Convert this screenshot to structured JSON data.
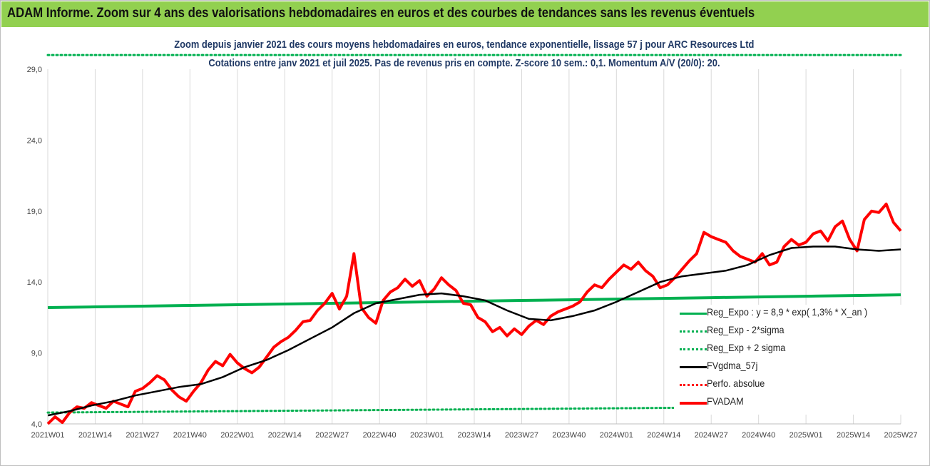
{
  "header": {
    "title": "ADAM Informe. Zoom sur 4 ans des valorisations hebdomadaires en euros et des courbes de tendances sans les revenus éventuels"
  },
  "chart_data": {
    "type": "line",
    "title": "Zoom depuis janvier 2021 des cours moyens hebdomadaires en euros, tendance exponentielle, lissage 57 j pour ARC Resources Ltd",
    "subtitle": "Cotations entre janv 2021 et juil 2025. Pas de revenus pris en compte. Z-score 10 sem.: 0,1. Momentum A/V (20/0): 20.",
    "xlabel": "",
    "ylabel": "",
    "ylim": [
      4.0,
      29.0
    ],
    "grid": true,
    "legend_position": "right",
    "y_ticks": [
      "4,0",
      "9,0",
      "14,0",
      "19,0",
      "24,0",
      "29,0"
    ],
    "x_ticks": [
      "2021W01",
      "2021W14",
      "2021W27",
      "2021W40",
      "2022W01",
      "2022W14",
      "2022W27",
      "2022W40",
      "2023W01",
      "2023W14",
      "2023W27",
      "2023W40",
      "2024W01",
      "2024W14",
      "2024W27",
      "2024W40",
      "2025W01",
      "2025W14",
      "2025W27"
    ],
    "colors": {
      "green": "#00b050",
      "black": "#000000",
      "red": "#ff0000",
      "banner": "#92d050",
      "subtitle": "#1f3864"
    },
    "series": [
      {
        "name": "Reg_Expo : y = 8,9 * exp( 1,3% *  X_an )",
        "style": "solid-green",
        "points": [
          [
            0,
            12.2
          ],
          [
            13,
            12.25
          ],
          [
            26,
            12.3
          ],
          [
            39,
            12.35
          ],
          [
            52,
            12.4
          ],
          [
            65,
            12.45
          ],
          [
            78,
            12.5
          ],
          [
            91,
            12.55
          ],
          [
            104,
            12.6
          ],
          [
            117,
            12.65
          ],
          [
            130,
            12.7
          ],
          [
            143,
            12.75
          ],
          [
            156,
            12.8
          ],
          [
            169,
            12.85
          ],
          [
            182,
            12.9
          ],
          [
            195,
            12.95
          ],
          [
            208,
            13.0
          ],
          [
            221,
            13.05
          ],
          [
            234,
            13.1
          ]
        ]
      },
      {
        "name": "Reg_Exp - 2*sigma",
        "style": "dotted-green",
        "points": [
          [
            0,
            4.8
          ],
          [
            26,
            4.85
          ],
          [
            52,
            4.9
          ],
          [
            78,
            4.95
          ],
          [
            104,
            5.0
          ],
          [
            130,
            5.05
          ],
          [
            156,
            5.1
          ],
          [
            182,
            5.15
          ],
          [
            208,
            5.2
          ],
          [
            234,
            5.25
          ]
        ]
      },
      {
        "name": "Reg_Exp + 2 sigma",
        "style": "dotted-green",
        "points": [
          [
            0,
            30.0
          ],
          [
            234,
            30.0
          ]
        ]
      },
      {
        "name": "FVgdma_57j",
        "style": "solid-black",
        "points": [
          [
            0,
            4.6
          ],
          [
            6,
            4.9
          ],
          [
            12,
            5.3
          ],
          [
            18,
            5.6
          ],
          [
            24,
            6.0
          ],
          [
            30,
            6.3
          ],
          [
            36,
            6.6
          ],
          [
            42,
            6.8
          ],
          [
            48,
            7.3
          ],
          [
            54,
            8.0
          ],
          [
            60,
            8.5
          ],
          [
            66,
            9.2
          ],
          [
            72,
            10.0
          ],
          [
            78,
            10.8
          ],
          [
            84,
            11.8
          ],
          [
            90,
            12.5
          ],
          [
            96,
            12.8
          ],
          [
            102,
            13.1
          ],
          [
            108,
            13.2
          ],
          [
            114,
            13.0
          ],
          [
            120,
            12.7
          ],
          [
            126,
            12.0
          ],
          [
            132,
            11.4
          ],
          [
            138,
            11.3
          ],
          [
            144,
            11.6
          ],
          [
            150,
            12.0
          ],
          [
            156,
            12.6
          ],
          [
            162,
            13.3
          ],
          [
            168,
            14.0
          ],
          [
            174,
            14.4
          ],
          [
            180,
            14.6
          ],
          [
            186,
            14.8
          ],
          [
            192,
            15.2
          ],
          [
            198,
            15.9
          ],
          [
            204,
            16.4
          ],
          [
            210,
            16.5
          ],
          [
            216,
            16.5
          ],
          [
            222,
            16.3
          ],
          [
            228,
            16.2
          ],
          [
            234,
            16.3
          ]
        ]
      },
      {
        "name": "Perfo. absolue",
        "style": "dotted-red",
        "points": []
      },
      {
        "name": "FVADAM",
        "style": "solid-red",
        "points": [
          [
            0,
            4.0
          ],
          [
            2,
            4.5
          ],
          [
            4,
            4.1
          ],
          [
            6,
            4.8
          ],
          [
            8,
            5.2
          ],
          [
            10,
            5.1
          ],
          [
            12,
            5.5
          ],
          [
            14,
            5.3
          ],
          [
            16,
            5.1
          ],
          [
            18,
            5.6
          ],
          [
            20,
            5.4
          ],
          [
            22,
            5.2
          ],
          [
            24,
            6.3
          ],
          [
            26,
            6.5
          ],
          [
            28,
            6.9
          ],
          [
            30,
            7.4
          ],
          [
            32,
            7.1
          ],
          [
            34,
            6.4
          ],
          [
            36,
            5.9
          ],
          [
            38,
            5.6
          ],
          [
            40,
            6.3
          ],
          [
            42,
            6.9
          ],
          [
            44,
            7.8
          ],
          [
            46,
            8.4
          ],
          [
            48,
            8.1
          ],
          [
            50,
            8.9
          ],
          [
            52,
            8.3
          ],
          [
            54,
            7.9
          ],
          [
            56,
            7.6
          ],
          [
            58,
            8.0
          ],
          [
            60,
            8.7
          ],
          [
            62,
            9.4
          ],
          [
            64,
            9.8
          ],
          [
            66,
            10.1
          ],
          [
            68,
            10.6
          ],
          [
            70,
            11.2
          ],
          [
            72,
            11.3
          ],
          [
            74,
            12.0
          ],
          [
            76,
            12.5
          ],
          [
            78,
            13.2
          ],
          [
            80,
            12.1
          ],
          [
            82,
            13.0
          ],
          [
            84,
            16.0
          ],
          [
            86,
            12.2
          ],
          [
            88,
            11.5
          ],
          [
            90,
            11.1
          ],
          [
            92,
            12.7
          ],
          [
            94,
            13.3
          ],
          [
            96,
            13.6
          ],
          [
            98,
            14.2
          ],
          [
            100,
            13.7
          ],
          [
            102,
            14.1
          ],
          [
            104,
            13.0
          ],
          [
            106,
            13.5
          ],
          [
            108,
            14.3
          ],
          [
            110,
            13.8
          ],
          [
            112,
            13.4
          ],
          [
            114,
            12.5
          ],
          [
            116,
            12.4
          ],
          [
            118,
            11.5
          ],
          [
            120,
            11.2
          ],
          [
            122,
            10.5
          ],
          [
            124,
            10.8
          ],
          [
            126,
            10.2
          ],
          [
            128,
            10.7
          ],
          [
            130,
            10.3
          ],
          [
            132,
            10.9
          ],
          [
            134,
            11.3
          ],
          [
            136,
            11.0
          ],
          [
            138,
            11.6
          ],
          [
            140,
            11.9
          ],
          [
            142,
            12.1
          ],
          [
            144,
            12.3
          ],
          [
            146,
            12.6
          ],
          [
            148,
            13.3
          ],
          [
            150,
            13.8
          ],
          [
            152,
            13.6
          ],
          [
            154,
            14.2
          ],
          [
            156,
            14.7
          ],
          [
            158,
            15.2
          ],
          [
            160,
            14.9
          ],
          [
            162,
            15.4
          ],
          [
            164,
            14.8
          ],
          [
            166,
            14.4
          ],
          [
            168,
            13.6
          ],
          [
            170,
            13.8
          ],
          [
            172,
            14.3
          ],
          [
            174,
            14.9
          ],
          [
            176,
            15.5
          ],
          [
            178,
            16.0
          ],
          [
            180,
            17.5
          ],
          [
            182,
            17.2
          ],
          [
            184,
            17.0
          ],
          [
            186,
            16.8
          ],
          [
            188,
            16.2
          ],
          [
            190,
            15.8
          ],
          [
            192,
            15.6
          ],
          [
            194,
            15.4
          ],
          [
            196,
            16.0
          ],
          [
            198,
            15.2
          ],
          [
            200,
            15.4
          ],
          [
            202,
            16.5
          ],
          [
            204,
            17.0
          ],
          [
            206,
            16.6
          ],
          [
            208,
            16.8
          ],
          [
            210,
            17.4
          ],
          [
            212,
            17.6
          ],
          [
            214,
            16.9
          ],
          [
            216,
            17.9
          ],
          [
            218,
            18.3
          ],
          [
            220,
            17.0
          ],
          [
            222,
            16.2
          ],
          [
            224,
            18.4
          ],
          [
            226,
            19.0
          ],
          [
            228,
            18.9
          ],
          [
            230,
            19.5
          ],
          [
            232,
            18.2
          ],
          [
            234,
            17.6
          ]
        ]
      }
    ]
  }
}
